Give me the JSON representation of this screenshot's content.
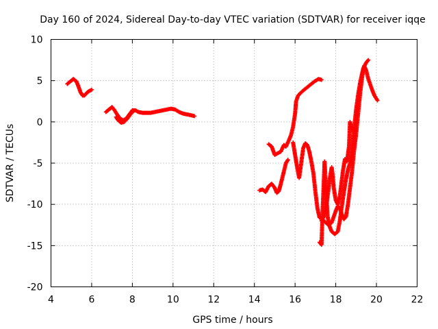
{
  "chart_data": {
    "type": "scatter",
    "title": "Day 160 of 2024, Sidereal Day-to-day VTEC variation (SDTVAR) for receiver iqqe",
    "xlabel": "GPS time / hours",
    "ylabel": "SDTVAR / TECUs",
    "xlim": [
      4,
      22
    ],
    "ylim": [
      -20,
      10
    ],
    "xticks": [
      "4",
      "6",
      "8",
      "10",
      "12",
      "14",
      "16",
      "18",
      "20",
      "22"
    ],
    "yticks": [
      "-20",
      "-15",
      "-10",
      "-5",
      "0",
      "5",
      "10"
    ],
    "grid": true,
    "marker": "plus",
    "series": [
      {
        "name": "SDTVAR",
        "color": "#ff0000",
        "segments": [
          [
            [
              4.8,
              4.6
            ],
            [
              4.95,
              4.9
            ],
            [
              5.1,
              5.2
            ],
            [
              5.25,
              4.9
            ],
            [
              5.35,
              4.3
            ],
            [
              5.45,
              3.6
            ],
            [
              5.55,
              3.2
            ],
            [
              5.65,
              3.2
            ],
            [
              5.75,
              3.5
            ],
            [
              5.85,
              3.7
            ],
            [
              6.0,
              3.9
            ]
          ],
          [
            [
              6.7,
              1.2
            ],
            [
              6.85,
              1.5
            ],
            [
              7.0,
              1.8
            ],
            [
              7.1,
              1.5
            ],
            [
              7.25,
              0.9
            ],
            [
              7.4,
              0.4
            ],
            [
              7.55,
              0.2
            ],
            [
              7.7,
              0.4
            ],
            [
              7.85,
              0.9
            ],
            [
              8.0,
              1.4
            ],
            [
              8.15,
              1.4
            ],
            [
              8.3,
              1.2
            ],
            [
              8.5,
              1.1
            ],
            [
              8.7,
              1.1
            ],
            [
              8.9,
              1.1
            ],
            [
              9.1,
              1.2
            ],
            [
              9.3,
              1.3
            ],
            [
              9.5,
              1.4
            ],
            [
              9.7,
              1.5
            ],
            [
              9.9,
              1.6
            ],
            [
              10.1,
              1.5
            ],
            [
              10.3,
              1.2
            ],
            [
              10.5,
              1.0
            ],
            [
              10.7,
              0.9
            ],
            [
              10.9,
              0.8
            ],
            [
              11.05,
              0.7
            ]
          ],
          [
            [
              7.2,
              0.6
            ],
            [
              7.3,
              0.2
            ],
            [
              7.45,
              -0.1
            ],
            [
              7.6,
              0.0
            ],
            [
              7.75,
              0.4
            ],
            [
              7.9,
              0.9
            ],
            [
              8.05,
              1.3
            ]
          ],
          [
            [
              14.25,
              -8.3
            ],
            [
              14.4,
              -8.2
            ],
            [
              14.55,
              -8.5
            ],
            [
              14.7,
              -7.8
            ],
            [
              14.85,
              -7.5
            ],
            [
              15.0,
              -8.0
            ],
            [
              15.1,
              -8.6
            ],
            [
              15.2,
              -8.4
            ],
            [
              15.3,
              -7.5
            ],
            [
              15.45,
              -6.0
            ],
            [
              15.55,
              -5.0
            ],
            [
              15.65,
              -4.6
            ]
          ],
          [
            [
              14.7,
              -2.7
            ],
            [
              14.85,
              -3.0
            ],
            [
              15.0,
              -4.0
            ],
            [
              15.15,
              -3.8
            ],
            [
              15.3,
              -3.6
            ],
            [
              15.45,
              -2.8
            ],
            [
              15.55,
              -3.0
            ],
            [
              15.7,
              -2.2
            ],
            [
              15.8,
              -1.6
            ],
            [
              15.9,
              -0.6
            ],
            [
              16.0,
              1.0
            ],
            [
              16.05,
              2.5
            ],
            [
              16.15,
              3.2
            ],
            [
              16.35,
              3.7
            ],
            [
              16.55,
              4.1
            ],
            [
              16.75,
              4.5
            ],
            [
              16.95,
              4.9
            ],
            [
              17.15,
              5.2
            ],
            [
              17.3,
              5.1
            ]
          ],
          [
            [
              15.9,
              -2.5
            ],
            [
              16.0,
              -4.0
            ],
            [
              16.1,
              -5.5
            ],
            [
              16.2,
              -6.8
            ],
            [
              16.3,
              -5.0
            ],
            [
              16.4,
              -3.2
            ],
            [
              16.5,
              -2.6
            ],
            [
              16.6,
              -2.8
            ],
            [
              16.7,
              -3.6
            ],
            [
              16.8,
              -4.8
            ],
            [
              16.9,
              -6.2
            ],
            [
              17.0,
              -8.5
            ],
            [
              17.1,
              -10.5
            ],
            [
              17.2,
              -11.6
            ],
            [
              17.35,
              -11.8
            ],
            [
              17.5,
              -12.2
            ],
            [
              17.65,
              -12.5
            ],
            [
              17.8,
              -12.2
            ],
            [
              17.9,
              -11.5
            ],
            [
              18.0,
              -10.8
            ],
            [
              18.1,
              -10.2
            ],
            [
              18.2,
              -10.5
            ],
            [
              18.3,
              -11.2
            ],
            [
              18.4,
              -11.8
            ],
            [
              18.5,
              -11.5
            ],
            [
              18.6,
              -10.0
            ],
            [
              18.7,
              -8.0
            ],
            [
              18.8,
              -6.0
            ],
            [
              18.9,
              -3.5
            ],
            [
              19.0,
              -1.5
            ],
            [
              19.1,
              1.0
            ],
            [
              19.2,
              3.5
            ],
            [
              19.3,
              5.5
            ],
            [
              19.4,
              6.8
            ],
            [
              19.5,
              6.2
            ],
            [
              19.6,
              5.2
            ],
            [
              19.7,
              4.5
            ],
            [
              19.8,
              3.8
            ],
            [
              19.9,
              3.2
            ],
            [
              20.05,
              2.6
            ]
          ],
          [
            [
              17.2,
              -14.6
            ],
            [
              17.3,
              -14.9
            ],
            [
              17.35,
              -11.0
            ],
            [
              17.4,
              -8.0
            ],
            [
              17.45,
              -4.8
            ],
            [
              17.5,
              -7.0
            ],
            [
              17.55,
              -9.5
            ],
            [
              17.6,
              -11.5
            ],
            [
              17.7,
              -12.7
            ],
            [
              17.8,
              -13.3
            ],
            [
              17.95,
              -13.6
            ],
            [
              18.1,
              -13.3
            ],
            [
              18.2,
              -12.0
            ],
            [
              18.3,
              -10.2
            ],
            [
              18.4,
              -8.5
            ],
            [
              18.5,
              -7.0
            ],
            [
              18.6,
              -5.8
            ],
            [
              18.7,
              -5.0
            ],
            [
              18.8,
              -3.5
            ],
            [
              18.9,
              -0.8
            ],
            [
              19.0,
              1.5
            ],
            [
              19.1,
              3.3
            ],
            [
              19.2,
              4.8
            ],
            [
              19.35,
              6.5
            ],
            [
              19.5,
              7.2
            ],
            [
              19.6,
              7.5
            ]
          ],
          [
            [
              17.3,
              -12.0
            ],
            [
              17.4,
              -11.5
            ],
            [
              17.5,
              -10.8
            ],
            [
              17.6,
              -9.0
            ],
            [
              17.7,
              -7.0
            ],
            [
              17.8,
              -5.5
            ],
            [
              17.85,
              -6.5
            ],
            [
              17.9,
              -8.0
            ],
            [
              18.0,
              -9.5
            ],
            [
              18.1,
              -10.0
            ],
            [
              18.2,
              -9.0
            ],
            [
              18.35,
              -6.0
            ],
            [
              18.45,
              -4.5
            ],
            [
              18.55,
              -4.8
            ],
            [
              18.65,
              -3.0
            ],
            [
              18.7,
              0.0
            ],
            [
              18.8,
              -1.0
            ]
          ]
        ]
      }
    ]
  }
}
